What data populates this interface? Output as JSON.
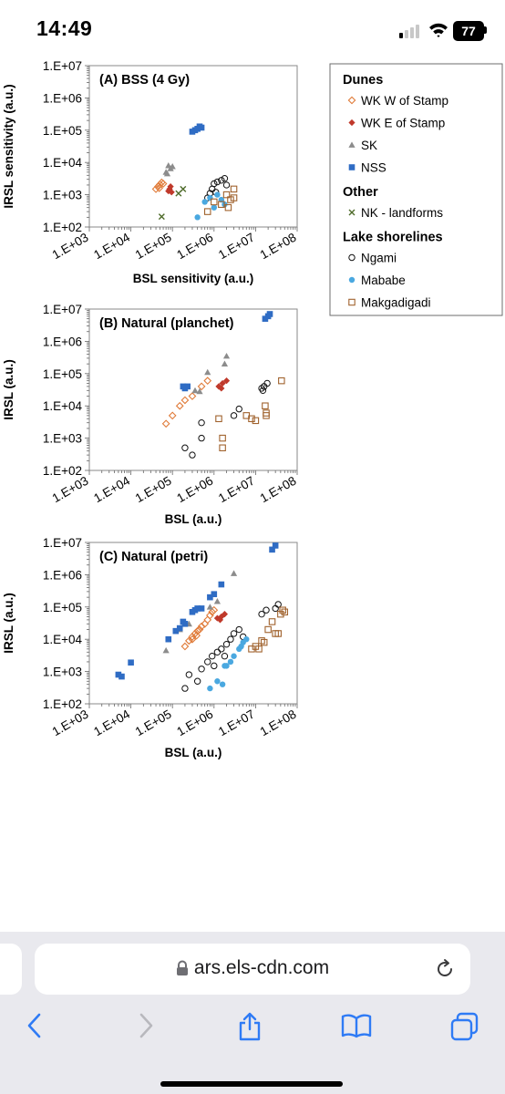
{
  "status": {
    "time": "14:49",
    "battery": "77"
  },
  "browser": {
    "url": "ars.els-cdn.com"
  },
  "legend": {
    "groups": [
      {
        "title": "Dunes",
        "items": [
          {
            "label": "WK W of Stamp",
            "marker": "diamond-open",
            "color": "#e07b39"
          },
          {
            "label": "WK E of Stamp",
            "marker": "diamond",
            "color": "#c0392b"
          },
          {
            "label": "SK",
            "marker": "triangle",
            "color": "#8c8c8c"
          },
          {
            "label": "NSS",
            "marker": "square",
            "color": "#2f6cc4"
          }
        ]
      },
      {
        "title": "Other",
        "items": [
          {
            "label": "NK - landforms",
            "marker": "x",
            "color": "#4e6b2a"
          }
        ]
      },
      {
        "title": "Lake shorelines",
        "items": [
          {
            "label": "Ngami",
            "marker": "circle-open",
            "color": "#111111"
          },
          {
            "label": "Mababe",
            "marker": "circle",
            "color": "#4aa8e0"
          },
          {
            "label": "Makgadigadi",
            "marker": "square-open",
            "color": "#a0622d"
          }
        ]
      }
    ]
  },
  "chart_data": [
    {
      "type": "scatter",
      "title": "(A) BSS (4 Gy)",
      "xlabel": "BSL sensitivity (a.u.)",
      "ylabel": "IRSL sensitivity (a.u.)",
      "xscale": "log",
      "yscale": "log",
      "xlim": [
        1000,
        100000000
      ],
      "ylim": [
        100,
        10000000
      ],
      "x_ticks": [
        "1.E+03",
        "1.E+04",
        "1.E+05",
        "1.E+06",
        "1.E+07",
        "1.E+08"
      ],
      "y_ticks": [
        "1.E+02",
        "1.E+03",
        "1.E+04",
        "1.E+05",
        "1.E+06",
        "1.E+07"
      ],
      "series": [
        {
          "name": "WK W of Stamp",
          "points": [
            [
              40000,
              1500
            ],
            [
              45000,
              1800
            ],
            [
              50000,
              2100
            ],
            [
              55000,
              2400
            ],
            [
              60000,
              2200
            ],
            [
              48000,
              1600
            ]
          ]
        },
        {
          "name": "WK E of Stamp",
          "points": [
            [
              80000,
              1300
            ],
            [
              90000,
              1800
            ],
            [
              85000,
              1500
            ],
            [
              95000,
              1200
            ]
          ]
        },
        {
          "name": "SK",
          "points": [
            [
              70000,
              5000
            ],
            [
              80000,
              8000
            ],
            [
              90000,
              6500
            ],
            [
              100000,
              7500
            ],
            [
              75000,
              4500
            ]
          ]
        },
        {
          "name": "NSS",
          "points": [
            [
              300000,
              90000
            ],
            [
              350000,
              100000
            ],
            [
              400000,
              110000
            ],
            [
              450000,
              130000
            ],
            [
              500000,
              120000
            ]
          ]
        },
        {
          "name": "NK - landforms",
          "points": [
            [
              55000,
              210
            ],
            [
              140000,
              1100
            ],
            [
              180000,
              1500
            ]
          ]
        },
        {
          "name": "Ngami",
          "points": [
            [
              700000,
              800
            ],
            [
              900000,
              1500
            ],
            [
              1000000,
              2200
            ],
            [
              1200000,
              2500
            ],
            [
              1500000,
              2800
            ],
            [
              1800000,
              3200
            ],
            [
              1100000,
              1200
            ],
            [
              2000000,
              2000
            ],
            [
              800000,
              1100
            ]
          ]
        },
        {
          "name": "Mababe",
          "points": [
            [
              400000,
              200
            ],
            [
              600000,
              600
            ],
            [
              800000,
              800
            ],
            [
              1200000,
              1000
            ],
            [
              1500000,
              700
            ],
            [
              1800000,
              500
            ],
            [
              1000000,
              400
            ]
          ]
        },
        {
          "name": "Makgadigadi",
          "points": [
            [
              700000,
              300
            ],
            [
              1000000,
              600
            ],
            [
              1500000,
              500
            ],
            [
              2000000,
              1000
            ],
            [
              2500000,
              700
            ],
            [
              3000000,
              1500
            ],
            [
              2200000,
              400
            ],
            [
              3000000,
              800
            ]
          ]
        }
      ]
    },
    {
      "type": "scatter",
      "title": "(B) Natural (planchet)",
      "xlabel": "BSL (a.u.)",
      "ylabel": "IRSL (a.u.)",
      "xscale": "log",
      "yscale": "log",
      "xlim": [
        1000,
        100000000
      ],
      "ylim": [
        100,
        10000000
      ],
      "x_ticks": [
        "1.E+03",
        "1.E+04",
        "1.E+05",
        "1.E+06",
        "1.E+07",
        "1.E+08"
      ],
      "y_ticks": [
        "1.E+02",
        "1.E+03",
        "1.E+04",
        "1.E+05",
        "1.E+06",
        "1.E+07"
      ],
      "series": [
        {
          "name": "WK W of Stamp",
          "points": [
            [
              70000,
              2800
            ],
            [
              100000,
              5000
            ],
            [
              150000,
              10000
            ],
            [
              200000,
              15000
            ],
            [
              300000,
              20000
            ],
            [
              500000,
              40000
            ],
            [
              700000,
              60000
            ]
          ]
        },
        {
          "name": "WK E of Stamp",
          "points": [
            [
              1300000,
              40000
            ],
            [
              1600000,
              50000
            ],
            [
              2000000,
              60000
            ],
            [
              1500000,
              35000
            ]
          ]
        },
        {
          "name": "SK",
          "points": [
            [
              350000,
              30000
            ],
            [
              450000,
              28000
            ],
            [
              700000,
              110000
            ],
            [
              2000000,
              350000
            ],
            [
              1800000,
              200000
            ]
          ]
        },
        {
          "name": "NSS",
          "points": [
            [
              180000,
              40000
            ],
            [
              200000,
              35000
            ],
            [
              230000,
              40000
            ],
            [
              17000000,
              5000000
            ],
            [
              20000000,
              6000000
            ],
            [
              22000000,
              7000000
            ]
          ]
        },
        {
          "name": "Ngami",
          "points": [
            [
              200000,
              500
            ],
            [
              300000,
              300
            ],
            [
              500000,
              1000
            ],
            [
              500000,
              3000
            ],
            [
              3000000,
              5000
            ],
            [
              4000000,
              8000
            ],
            [
              14000000,
              35000
            ],
            [
              16000000,
              40000
            ],
            [
              19000000,
              50000
            ],
            [
              15000000,
              30000
            ]
          ]
        },
        {
          "name": "Makgadigadi",
          "points": [
            [
              1300000,
              4000
            ],
            [
              1600000,
              500
            ],
            [
              1600000,
              1000
            ],
            [
              6000000,
              5000
            ],
            [
              8000000,
              4000
            ],
            [
              10000000,
              3500
            ],
            [
              17000000,
              10000
            ],
            [
              18000000,
              5000
            ],
            [
              18000000,
              6000
            ],
            [
              42000000,
              60000
            ]
          ]
        }
      ]
    },
    {
      "type": "scatter",
      "title": "(C) Natural (petri)",
      "xlabel": "BSL (a.u.)",
      "ylabel": "IRSL (a.u.)",
      "xscale": "log",
      "yscale": "log",
      "xlim": [
        1000,
        100000000
      ],
      "ylim": [
        100,
        10000000
      ],
      "x_ticks": [
        "1.E+03",
        "1.E+04",
        "1.E+05",
        "1.E+06",
        "1.E+07",
        "1.E+08"
      ],
      "y_ticks": [
        "1.E+02",
        "1.E+03",
        "1.E+04",
        "1.E+05",
        "1.E+06",
        "1.E+07"
      ],
      "series": [
        {
          "name": "WK W of Stamp",
          "points": [
            [
              200000,
              6000
            ],
            [
              250000,
              9000
            ],
            [
              300000,
              12000
            ],
            [
              350000,
              15000
            ],
            [
              400000,
              18000
            ],
            [
              450000,
              20000
            ],
            [
              500000,
              25000
            ],
            [
              600000,
              30000
            ],
            [
              700000,
              40000
            ],
            [
              800000,
              55000
            ],
            [
              900000,
              70000
            ],
            [
              1000000,
              80000
            ],
            [
              300000,
              10000
            ],
            [
              380000,
              13000
            ]
          ]
        },
        {
          "name": "WK E of Stamp",
          "points": [
            [
              1200000,
              45000
            ],
            [
              1500000,
              50000
            ],
            [
              1800000,
              60000
            ],
            [
              1400000,
              40000
            ]
          ]
        },
        {
          "name": "SK",
          "points": [
            [
              70000,
              4500
            ],
            [
              150000,
              20000
            ],
            [
              250000,
              30000
            ],
            [
              800000,
              100000
            ],
            [
              1200000,
              150000
            ],
            [
              3000000,
              1100000
            ]
          ]
        },
        {
          "name": "NSS",
          "points": [
            [
              5000,
              800
            ],
            [
              6000,
              700
            ],
            [
              10000,
              1900
            ],
            [
              80000,
              10000
            ],
            [
              120000,
              18000
            ],
            [
              150000,
              22000
            ],
            [
              180000,
              35000
            ],
            [
              200000,
              30000
            ],
            [
              300000,
              70000
            ],
            [
              350000,
              80000
            ],
            [
              400000,
              90000
            ],
            [
              500000,
              90000
            ],
            [
              800000,
              200000
            ],
            [
              1000000,
              250000
            ],
            [
              1500000,
              500000
            ],
            [
              25000000,
              6000000
            ],
            [
              30000000,
              8000000
            ]
          ]
        },
        {
          "name": "Ngami",
          "points": [
            [
              200000,
              300
            ],
            [
              250000,
              800
            ],
            [
              400000,
              500
            ],
            [
              500000,
              1200
            ],
            [
              700000,
              2000
            ],
            [
              900000,
              3000
            ],
            [
              1200000,
              4000
            ],
            [
              1500000,
              5000
            ],
            [
              2000000,
              7000
            ],
            [
              2500000,
              10000
            ],
            [
              3000000,
              15000
            ],
            [
              4000000,
              20000
            ],
            [
              5000000,
              12000
            ],
            [
              14000000,
              60000
            ],
            [
              18000000,
              80000
            ],
            [
              1000000,
              1500
            ],
            [
              1800000,
              3000
            ],
            [
              35000000,
              120000
            ],
            [
              30000000,
              90000
            ]
          ]
        },
        {
          "name": "Mababe",
          "points": [
            [
              800000,
              300
            ],
            [
              1200000,
              500
            ],
            [
              1600000,
              400
            ],
            [
              2000000,
              1500
            ],
            [
              2500000,
              2000
            ],
            [
              3000000,
              3000
            ],
            [
              4000000,
              5000
            ],
            [
              5000000,
              8000
            ],
            [
              6000000,
              10000
            ],
            [
              1800000,
              1500
            ],
            [
              4500000,
              6000
            ]
          ]
        },
        {
          "name": "Makgadigadi",
          "points": [
            [
              8000000,
              5000
            ],
            [
              10000000,
              6000
            ],
            [
              14000000,
              9000
            ],
            [
              16000000,
              8000
            ],
            [
              20000000,
              20000
            ],
            [
              25000000,
              35000
            ],
            [
              30000000,
              15000
            ],
            [
              35000000,
              15000
            ],
            [
              40000000,
              60000
            ],
            [
              45000000,
              80000
            ],
            [
              50000000,
              70000
            ],
            [
              12000000,
              5000
            ]
          ]
        }
      ]
    }
  ]
}
